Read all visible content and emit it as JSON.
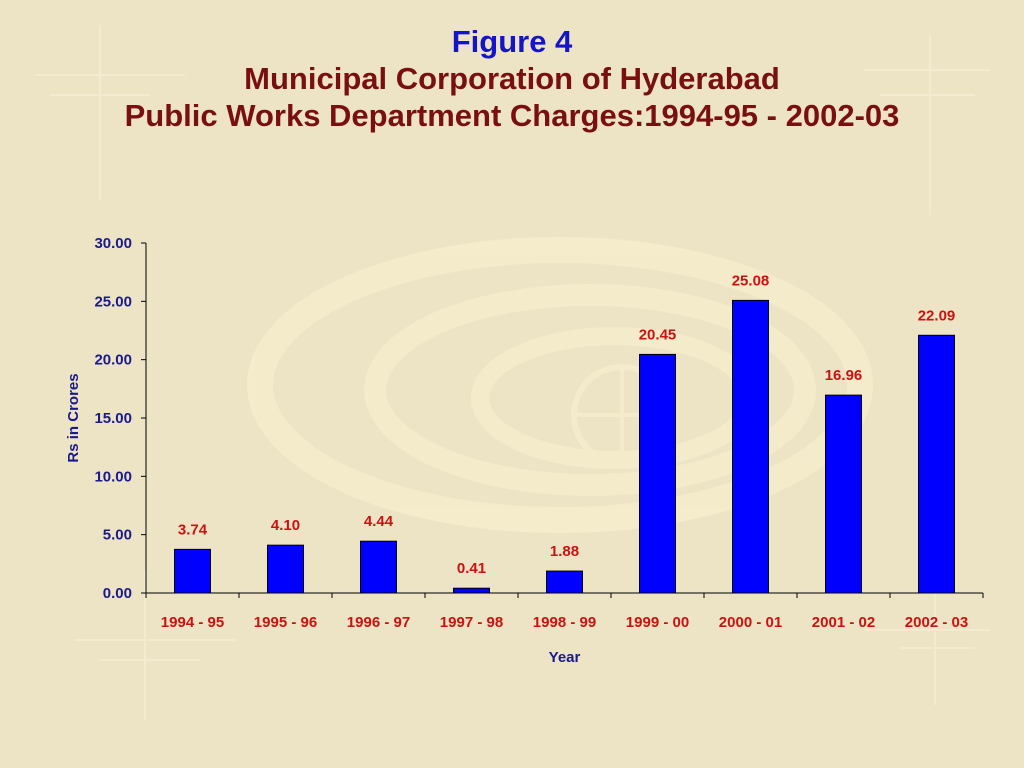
{
  "slide": {
    "figure_label": "Figure 4",
    "title_line1": "Municipal Corporation of Hyderabad",
    "title_line2": "Public Works Department Charges:1994-95 - 2002-03"
  },
  "colors": {
    "background": "#ede4c6",
    "bar_fill": "#0000ff",
    "bar_stroke": "#000000",
    "value_label": "#cc1111",
    "axis_label": "#1a1a8c",
    "figure_label": "#1414c8",
    "title": "#7a0f0f"
  },
  "chart_data": {
    "type": "bar",
    "title": "",
    "xlabel": "Year",
    "ylabel": "Rs in Crores",
    "categories": [
      "1994 - 95",
      "1995 - 96",
      "1996 - 97",
      "1997 - 98",
      "1998 - 99",
      "1999 - 00",
      "2000 - 01",
      "2001 - 02",
      "2002 - 03"
    ],
    "values": [
      3.74,
      4.1,
      4.44,
      0.41,
      1.88,
      20.45,
      25.08,
      16.96,
      22.09
    ],
    "value_labels": [
      "3.74",
      "4.10",
      "4.44",
      "0.41",
      "1.88",
      "20.45",
      "25.08",
      "16.96",
      "22.09"
    ],
    "ylim": [
      0,
      30
    ],
    "yticks": [
      "0.00",
      "5.00",
      "10.00",
      "15.00",
      "20.00",
      "25.00",
      "30.00"
    ],
    "grid": false,
    "legend": "none"
  }
}
